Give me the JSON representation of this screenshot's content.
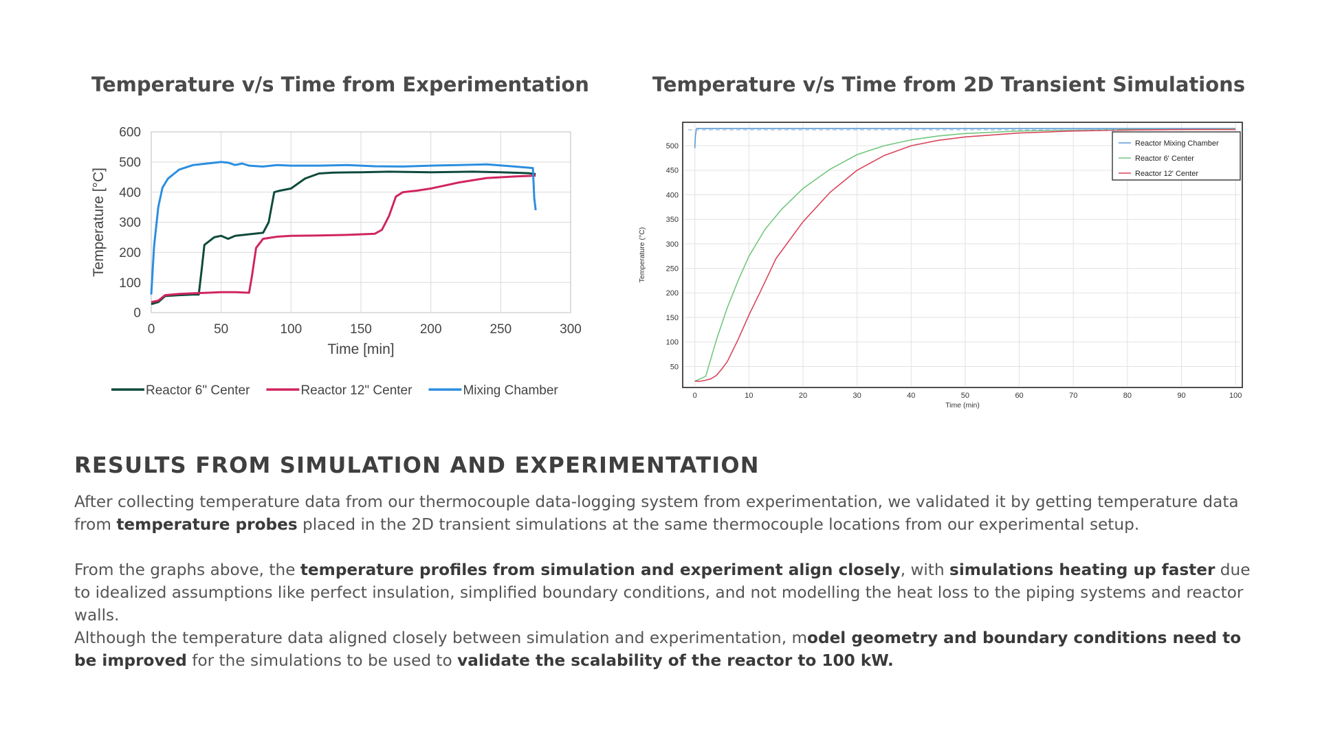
{
  "chart_data": [
    {
      "type": "line",
      "title": "Temperature v/s Time from Experimentation",
      "xlabel": "Time [min]",
      "ylabel": "Temperature [°C]",
      "xlim": [
        0,
        300
      ],
      "ylim": [
        0,
        600
      ],
      "xticks": [
        "0",
        "50",
        "100",
        "150",
        "200",
        "250",
        "300"
      ],
      "yticks": [
        "0",
        "100",
        "200",
        "300",
        "400",
        "500",
        "600"
      ],
      "grid": true,
      "legend_position": "bottom",
      "series": [
        {
          "name": "Reactor 6\" Center",
          "color": "#0e4a3c",
          "x": [
            0,
            5,
            10,
            20,
            30,
            34,
            36,
            38,
            45,
            50,
            55,
            60,
            70,
            80,
            84,
            88,
            92,
            100,
            110,
            120,
            130,
            150,
            170,
            200,
            230,
            250,
            270,
            275
          ],
          "y": [
            28,
            35,
            55,
            58,
            60,
            60,
            140,
            225,
            250,
            255,
            245,
            255,
            260,
            265,
            300,
            400,
            405,
            412,
            445,
            462,
            465,
            466,
            468,
            466,
            468,
            466,
            463,
            460
          ]
        },
        {
          "name": "Reactor 12\" Center",
          "color": "#d02560",
          "x": [
            0,
            5,
            10,
            20,
            30,
            40,
            50,
            60,
            70,
            72,
            75,
            80,
            90,
            100,
            120,
            140,
            160,
            165,
            170,
            175,
            180,
            190,
            200,
            220,
            240,
            260,
            275
          ],
          "y": [
            35,
            40,
            58,
            62,
            64,
            66,
            68,
            68,
            66,
            120,
            215,
            245,
            252,
            255,
            256,
            258,
            262,
            275,
            320,
            385,
            400,
            405,
            412,
            432,
            447,
            452,
            455
          ]
        },
        {
          "name": "Mixing Chamber",
          "color": "#2b8ee0",
          "x": [
            0,
            2,
            5,
            8,
            12,
            20,
            30,
            40,
            50,
            55,
            60,
            65,
            70,
            80,
            90,
            100,
            120,
            140,
            160,
            180,
            200,
            220,
            240,
            260,
            273,
            274,
            275
          ],
          "y": [
            60,
            220,
            350,
            415,
            445,
            475,
            490,
            495,
            500,
            498,
            490,
            495,
            488,
            485,
            490,
            488,
            488,
            490,
            486,
            485,
            488,
            490,
            492,
            485,
            480,
            380,
            340
          ]
        }
      ]
    },
    {
      "type": "line",
      "title": "Temperature v/s Time from 2D Transient Simulations",
      "xlabel": "Time (min)",
      "ylabel": "Temperature (°C)",
      "xlim": [
        -2,
        101
      ],
      "ylim": [
        10,
        545
      ],
      "xticks": [
        "0",
        "10",
        "20",
        "30",
        "40",
        "50",
        "60",
        "70",
        "80",
        "90",
        "100"
      ],
      "yticks": [
        "50",
        "100",
        "150",
        "200",
        "250",
        "300",
        "350",
        "400",
        "450",
        "500"
      ],
      "grid": true,
      "legend_position": "top-right",
      "series": [
        {
          "name": "Reactor Mixing Chamber",
          "color": "#5b9bd5",
          "x": [
            0,
            0.1,
            0.3,
            100
          ],
          "y": [
            495,
            520,
            535,
            535
          ]
        },
        {
          "name": "Reactor 6' Center",
          "color": "#72c77e",
          "x": [
            0,
            2,
            4,
            6,
            8,
            10,
            13,
            16,
            20,
            25,
            30,
            35,
            40,
            45,
            50,
            60,
            70,
            80,
            90,
            100
          ],
          "y": [
            20,
            30,
            105,
            170,
            225,
            275,
            330,
            370,
            413,
            452,
            482,
            500,
            512,
            520,
            525,
            530,
            532,
            533,
            533,
            534
          ]
        },
        {
          "name": "Reactor 12' Center",
          "color": "#d9455a",
          "x": [
            0,
            1,
            2,
            3,
            4,
            5,
            6,
            8,
            10,
            12,
            15,
            20,
            25,
            30,
            35,
            40,
            45,
            50,
            60,
            70,
            80,
            90,
            100
          ],
          "y": [
            20,
            20,
            22,
            25,
            32,
            45,
            60,
            105,
            155,
            200,
            270,
            345,
            405,
            450,
            480,
            500,
            511,
            518,
            526,
            530,
            532,
            533,
            533
          ]
        }
      ]
    }
  ],
  "section": {
    "heading": "RESULTS FROM SIMULATION AND EXPERIMENTATION",
    "p1": {
      "a": "After collecting temperature data from our thermocouple data-logging system from experimentation, we validated it by getting temperature data from ",
      "b1": "temperature probes",
      "c": " placed in the 2D transient simulations at the same thermocouple locations from our experimental setup."
    },
    "p2": {
      "a": "From the graphs above, the ",
      "b1": "temperature profiles from simulation and experiment align closely",
      "c": ", with ",
      "b2": "simulations heating up faster",
      "d": " due to idealized assumptions like perfect insulation, simplified boundary conditions, and not modelling the heat loss to the piping systems and reactor walls."
    },
    "p3": {
      "a": "Although the temperature data aligned closely between simulation and experimentation, m",
      "b1": "odel geometry and boundary conditions need to be improved",
      "c": " for the simulations to be used to ",
      "b2": "validate the scalability of the reactor to 100 kW."
    }
  }
}
